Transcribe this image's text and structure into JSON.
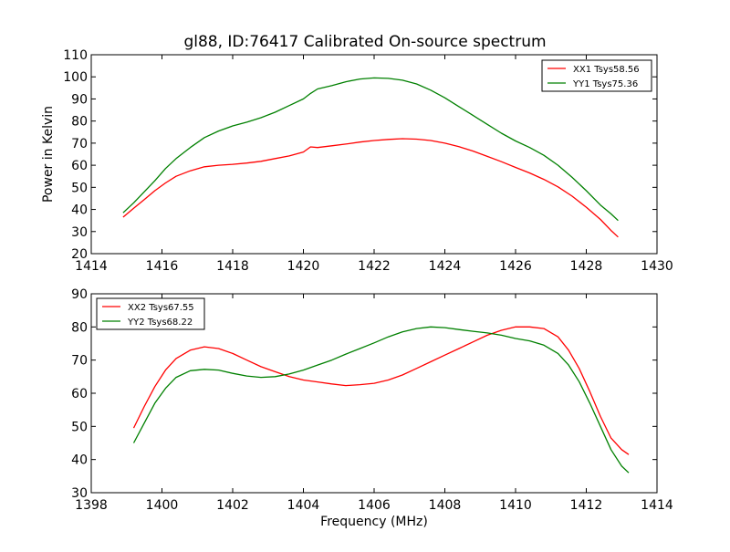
{
  "chart_data": [
    {
      "type": "line",
      "title": "gl88, ID:76417 Calibrated On-source spectrum",
      "xlabel": "",
      "ylabel": "Power in Kelvin",
      "xlim": [
        1414,
        1430
      ],
      "ylim": [
        20,
        110
      ],
      "xticks": [
        "1414",
        "1416",
        "1418",
        "1420",
        "1422",
        "1424",
        "1426",
        "1428",
        "1430"
      ],
      "yticks": [
        "20",
        "30",
        "40",
        "50",
        "60",
        "70",
        "80",
        "90",
        "100",
        "110"
      ],
      "legend_position": "top-right",
      "grid": false,
      "series": [
        {
          "name": "XX1 Tsys58.56",
          "color": "#ff0000",
          "x": [
            1414.9,
            1415.2,
            1415.5,
            1415.8,
            1416.1,
            1416.4,
            1416.8,
            1417.2,
            1417.6,
            1418.0,
            1418.4,
            1418.8,
            1419.2,
            1419.6,
            1420.0,
            1420.2,
            1420.4,
            1420.8,
            1421.2,
            1421.6,
            1422.0,
            1422.4,
            1422.8,
            1423.2,
            1423.6,
            1424.0,
            1424.4,
            1424.8,
            1425.2,
            1425.6,
            1426.0,
            1426.4,
            1426.8,
            1427.2,
            1427.6,
            1428.0,
            1428.4,
            1428.7,
            1428.9
          ],
          "y": [
            36.5,
            40.5,
            44.5,
            48.5,
            52,
            55,
            57.5,
            59.3,
            60,
            60.4,
            61,
            61.8,
            63,
            64.2,
            66,
            68.3,
            68,
            68.8,
            69.6,
            70.5,
            71.2,
            71.7,
            72,
            71.8,
            71.2,
            70,
            68.4,
            66.4,
            64,
            61.6,
            59,
            56.5,
            53.6,
            50.2,
            46,
            41,
            35.5,
            30.5,
            27.5
          ]
        },
        {
          "name": "YY1 Tsys75.36",
          "color": "#008000",
          "x": [
            1414.9,
            1415.2,
            1415.5,
            1415.8,
            1416.1,
            1416.4,
            1416.8,
            1417.2,
            1417.6,
            1418.0,
            1418.4,
            1418.8,
            1419.2,
            1419.6,
            1420.0,
            1420.2,
            1420.4,
            1420.8,
            1421.2,
            1421.6,
            1422.0,
            1422.4,
            1422.8,
            1423.2,
            1423.6,
            1424.0,
            1424.4,
            1424.8,
            1425.2,
            1425.6,
            1426.0,
            1426.4,
            1426.8,
            1427.2,
            1427.6,
            1428.0,
            1428.4,
            1428.7,
            1428.9
          ],
          "y": [
            38.5,
            43,
            48,
            53,
            58.5,
            63,
            68,
            72.5,
            75.5,
            77.8,
            79.5,
            81.5,
            84,
            87,
            90,
            92.5,
            94.5,
            96,
            97.8,
            99,
            99.5,
            99.3,
            98.5,
            96.8,
            94,
            90.5,
            86.5,
            82.5,
            78.5,
            74.5,
            71,
            68,
            64.5,
            60,
            54.5,
            48.5,
            42,
            38,
            35
          ]
        }
      ]
    },
    {
      "type": "line",
      "title": "",
      "xlabel": "Frequency (MHz)",
      "ylabel": "",
      "xlim": [
        1398,
        1414
      ],
      "ylim": [
        30,
        90
      ],
      "xticks": [
        "1398",
        "1400",
        "1402",
        "1404",
        "1406",
        "1408",
        "1410",
        "1412",
        "1414"
      ],
      "yticks": [
        "30",
        "40",
        "50",
        "60",
        "70",
        "80",
        "90"
      ],
      "legend_position": "top-left",
      "grid": false,
      "series": [
        {
          "name": "XX2 Tsys67.55",
          "color": "#ff0000",
          "x": [
            1399.2,
            1399.5,
            1399.8,
            1400.1,
            1400.4,
            1400.8,
            1401.2,
            1401.6,
            1402.0,
            1402.4,
            1402.8,
            1403.2,
            1403.6,
            1404.0,
            1404.4,
            1404.8,
            1405.2,
            1405.6,
            1406.0,
            1406.4,
            1406.8,
            1407.2,
            1407.6,
            1408.0,
            1408.4,
            1408.8,
            1409.2,
            1409.6,
            1410.0,
            1410.4,
            1410.8,
            1411.2,
            1411.5,
            1411.8,
            1412.1,
            1412.4,
            1412.7,
            1413.0,
            1413.2
          ],
          "y": [
            49.5,
            56,
            62,
            67,
            70.5,
            73,
            74,
            73.5,
            72,
            70,
            68,
            66.5,
            65,
            64,
            63.4,
            62.8,
            62.3,
            62.6,
            63,
            64,
            65.5,
            67.5,
            69.5,
            71.5,
            73.5,
            75.5,
            77.5,
            79,
            80,
            80,
            79.5,
            77,
            73,
            67.5,
            60.5,
            53,
            46.5,
            43,
            41.5
          ]
        },
        {
          "name": "YY2 Tsys68.22",
          "color": "#008000",
          "x": [
            1399.2,
            1399.5,
            1399.8,
            1400.1,
            1400.4,
            1400.8,
            1401.2,
            1401.6,
            1402.0,
            1402.4,
            1402.8,
            1403.2,
            1403.6,
            1404.0,
            1404.4,
            1404.8,
            1405.2,
            1405.6,
            1406.0,
            1406.4,
            1406.8,
            1407.2,
            1407.6,
            1408.0,
            1408.4,
            1408.8,
            1409.2,
            1409.6,
            1410.0,
            1410.4,
            1410.8,
            1411.2,
            1411.5,
            1411.8,
            1412.1,
            1412.4,
            1412.7,
            1413.0,
            1413.2
          ],
          "y": [
            45,
            51,
            57,
            61.5,
            64.8,
            66.8,
            67.2,
            67,
            66,
            65.2,
            64.8,
            65,
            65.8,
            67,
            68.5,
            70,
            71.8,
            73.5,
            75.2,
            77,
            78.5,
            79.5,
            80,
            79.8,
            79.2,
            78.7,
            78.2,
            77.5,
            76.5,
            75.8,
            74.5,
            72,
            68.5,
            63.5,
            57,
            50,
            43,
            38,
            36
          ]
        }
      ]
    }
  ]
}
